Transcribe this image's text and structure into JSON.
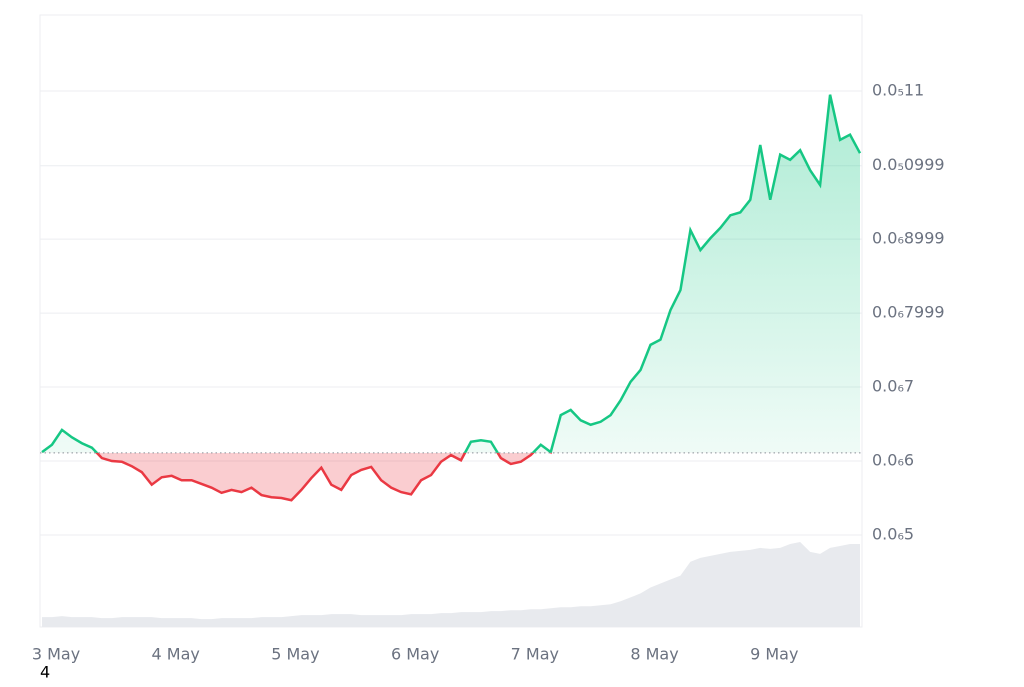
{
  "chart_data": {
    "type": "line",
    "xlim": [
      0,
      82
    ],
    "xticks": [
      {
        "value": 0,
        "label": "3 May"
      },
      {
        "value": 12,
        "label": "4 May"
      },
      {
        "value": 24,
        "label": "5 May"
      },
      {
        "value": 36,
        "label": "6 May"
      },
      {
        "value": 48,
        "label": "7 May"
      },
      {
        "value": 60,
        "label": "8 May"
      },
      {
        "value": 72,
        "label": "9 May"
      }
    ],
    "ylim": [
      3.757e-07,
      1.2027e-06
    ],
    "yticks": [
      {
        "value": 5e-07,
        "label": "0.0₆5"
      },
      {
        "value": 6e-07,
        "label": "0.0₆6"
      },
      {
        "value": 7e-07,
        "label": "0.0₆7"
      },
      {
        "value": 7.999e-07,
        "label": "0.0₆7999"
      },
      {
        "value": 8.999e-07,
        "label": "0.0₆8999"
      },
      {
        "value": 9.99e-07,
        "label": "0.0₅0999"
      },
      {
        "value": 1.1e-06,
        "label": "0.0₅11"
      }
    ],
    "grid": true,
    "baseline": 6.11e-07,
    "up_color": "#16c784",
    "down_color": "#ea3943",
    "values": [
      6.12e-07,
      6.22e-07,
      6.42e-07,
      6.32e-07,
      6.24e-07,
      6.18e-07,
      6.04e-07,
      6e-07,
      5.99e-07,
      5.93e-07,
      5.85e-07,
      5.68e-07,
      5.78e-07,
      5.8e-07,
      5.74e-07,
      5.74e-07,
      5.69e-07,
      5.64e-07,
      5.57e-07,
      5.61e-07,
      5.58e-07,
      5.64e-07,
      5.54e-07,
      5.51e-07,
      5.5e-07,
      5.47e-07,
      5.61e-07,
      5.77e-07,
      5.91e-07,
      5.68e-07,
      5.61e-07,
      5.81e-07,
      5.88e-07,
      5.92e-07,
      5.74e-07,
      5.64e-07,
      5.58e-07,
      5.55e-07,
      5.74e-07,
      5.81e-07,
      5.99e-07,
      6.08e-07,
      6.01e-07,
      6.26e-07,
      6.28e-07,
      6.26e-07,
      6.04e-07,
      5.96e-07,
      5.99e-07,
      6.08e-07,
      6.22e-07,
      6.12e-07,
      6.62e-07,
      6.69e-07,
      6.55e-07,
      6.49e-07,
      6.53e-07,
      6.62e-07,
      6.82e-07,
      7.07e-07,
      7.23e-07,
      7.57e-07,
      7.64e-07,
      8.04e-07,
      8.31e-07,
      9.12e-07,
      8.85e-07,
      9.01e-07,
      9.15e-07,
      9.32e-07,
      9.36e-07,
      9.53e-07,
      1.027e-06,
      9.53e-07,
      1.014e-06,
      1.007e-06,
      1.02e-06,
      9.93e-07,
      9.73e-07,
      1.095e-06,
      1.034e-06,
      1.041e-06,
      1.016e-06
    ],
    "volume_color": "#e8eaee",
    "volume": [
      10,
      10,
      11,
      10,
      10,
      10,
      9,
      9,
      10,
      10,
      10,
      10,
      9,
      9,
      9,
      9,
      8,
      8,
      9,
      9,
      9,
      9,
      10,
      10,
      10,
      11,
      12,
      12,
      12,
      13,
      13,
      13,
      12,
      12,
      12,
      12,
      12,
      13,
      13,
      13,
      14,
      14,
      15,
      15,
      15,
      16,
      16,
      17,
      17,
      18,
      18,
      19,
      20,
      20,
      21,
      21,
      22,
      23,
      26,
      30,
      34,
      40,
      44,
      48,
      52,
      66,
      70,
      72,
      74,
      76,
      77,
      78,
      80,
      79,
      80,
      84,
      86,
      76,
      74,
      80,
      82,
      84,
      84
    ],
    "footnote": "4"
  }
}
